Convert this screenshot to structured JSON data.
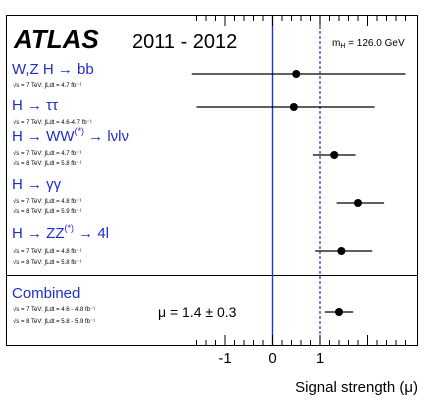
{
  "chart_data": {
    "type": "forest",
    "experiment": "ATLAS",
    "years": "2011 - 2012",
    "mass_label_main": "m",
    "mass_label_sub": "H",
    "mass_label_value": " = 126.0 GeV",
    "xlabel": "Signal strength (μ)",
    "xlim": [
      -2.0,
      3.0
    ],
    "x_ticks": [
      -1,
      0,
      1
    ],
    "x_tick_labels": [
      "-1",
      "0",
      "1"
    ],
    "reference_lines": [
      0,
      1
    ],
    "colors": {
      "channel_text": "#1e2ec8",
      "solid_line": "#2233cc",
      "dashed_line": "#2233cc",
      "frame": "#000000"
    },
    "channels": [
      {
        "name": "W,Z H → bb",
        "mu": 0.5,
        "low": -1.7,
        "high": 2.8,
        "lumi": [
          "√s = 7 TeV: ∫Ldt = 4.7 fb⁻¹"
        ]
      },
      {
        "name": "H → ττ",
        "mu": 0.45,
        "low": -1.6,
        "high": 2.15,
        "lumi": [
          "√s = 7 TeV: ∫Ldt = 4.6-4.7 fb⁻¹"
        ]
      },
      {
        "name": "H → WW",
        "sup": "(*)",
        "name_tail": " → lνlν",
        "mu": 1.3,
        "low": 0.85,
        "high": 1.75,
        "lumi": [
          "√s = 7 TeV: ∫Ldt = 4.7 fb⁻¹",
          "√s = 8 TeV: ∫Ldt = 5.8 fb⁻¹"
        ]
      },
      {
        "name": "H → γγ",
        "mu": 1.8,
        "low": 1.35,
        "high": 2.35,
        "lumi": [
          "√s = 7 TeV: ∫Ldt = 4.8 fb⁻¹",
          "√s = 8 TeV: ∫Ldt = 5.9 fb⁻¹"
        ]
      },
      {
        "name": "H → ZZ",
        "sup": "(*)",
        "name_tail": " → 4l",
        "mu": 1.45,
        "low": 0.9,
        "high": 2.1,
        "lumi": [
          "√s = 7 TeV: ∫Ldt = 4.8 fb⁻¹",
          "√s = 8 TeV: ∫Ldt = 5.8 fb⁻¹"
        ]
      }
    ],
    "combined": {
      "name": "Combined",
      "mu": 1.4,
      "low": 1.1,
      "high": 1.7,
      "result_text": "μ = 1.4 ± 0.3",
      "lumi": [
        "√s = 7 TeV: ∫Ldt = 4.6 - 4.8 fb⁻¹",
        "√s = 8 TeV: ∫Ldt = 5.8 - 5.9 fb⁻¹"
      ]
    }
  }
}
